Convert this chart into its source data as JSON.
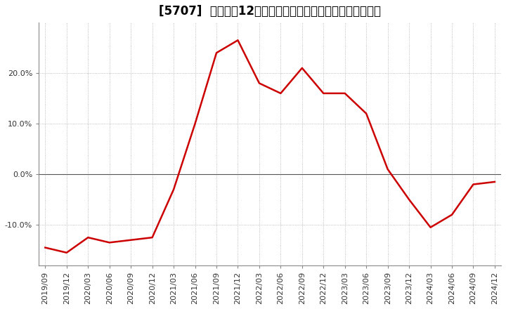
{
  "title": "[5707]  売上高の12か月移動合計の対前年同期増減率の推移",
  "line_color": "#cc0000",
  "background_color": "#ffffff",
  "plot_bg_color": "#ffffff",
  "grid_color": "#aaaaaa",
  "x_labels": [
    "2019/09",
    "2019/12",
    "2020/03",
    "2020/06",
    "2020/09",
    "2020/12",
    "2021/03",
    "2021/06",
    "2021/09",
    "2021/12",
    "2022/03",
    "2022/06",
    "2022/09",
    "2022/12",
    "2023/03",
    "2023/06",
    "2023/09",
    "2023/12",
    "2024/03",
    "2024/06",
    "2024/09",
    "2024/12"
  ],
  "y_values": [
    -14.5,
    -15.5,
    -12.5,
    -13.5,
    -13.0,
    -12.5,
    -3.0,
    10.0,
    24.0,
    26.5,
    18.0,
    16.0,
    21.0,
    16.0,
    16.0,
    12.0,
    1.0,
    -5.0,
    -10.5,
    -8.0,
    -2.0,
    -1.5
  ],
  "ylim_min": -18,
  "ylim_max": 30,
  "yticks": [
    20,
    10,
    0,
    -10
  ],
  "ytick_labels": [
    "20.0%",
    "10.0%",
    "0.0%",
    "-10.0%"
  ],
  "line_width": 1.8,
  "title_fontsize": 12,
  "tick_fontsize": 8
}
